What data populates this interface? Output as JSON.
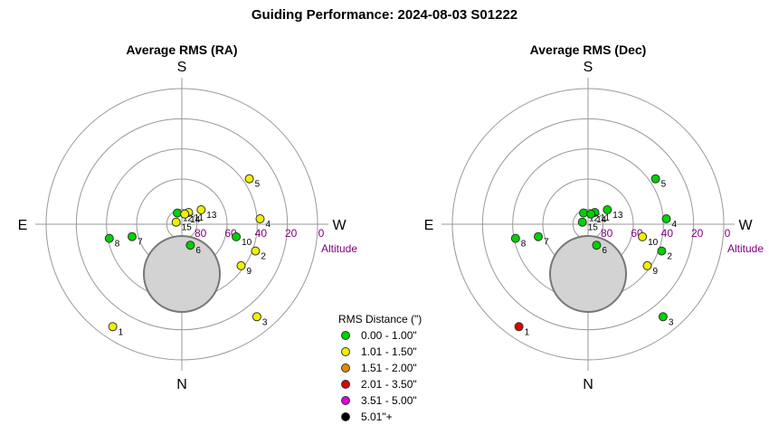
{
  "title": "Guiding Performance: 2024-08-03 S01222",
  "colors": {
    "band_0": "#00d200",
    "band_1": "#f0f000",
    "band_2": "#e08c00",
    "band_3": "#e00000",
    "band_4": "#e000e0",
    "band_5": "#000000",
    "altitude_label": "#800080",
    "rings": "#999999",
    "horizon_blocker": "#d3d3d3"
  },
  "legend": {
    "title": "RMS Distance (\")",
    "items": [
      {
        "label": "0.00 - 1.00\"",
        "color": "#00d200"
      },
      {
        "label": "1.01 - 1.50\"",
        "color": "#f0f000"
      },
      {
        "label": "1.51 - 2.00\"",
        "color": "#e08c00"
      },
      {
        "label": "2.01 - 3.50\"",
        "color": "#e00000"
      },
      {
        "label": "3.51 - 5.00\"",
        "color": "#e000e0"
      },
      {
        "label": "5.01\"+",
        "color": "#000000"
      }
    ]
  },
  "chart_data": [
    {
      "type": "scatter",
      "projection": "polar-sky",
      "title": "Average RMS (RA)",
      "directions": {
        "top": "S",
        "bottom": "N",
        "left": "E",
        "right": "W"
      },
      "altitude_label": "Altitude",
      "altitude_ticks": [
        80,
        60,
        40,
        20,
        0
      ],
      "altitude_range": [
        0,
        90
      ],
      "grid": true,
      "points": [
        {
          "label": "1",
          "azimuth": 34,
          "altitude": 8,
          "band": 1
        },
        {
          "label": "2",
          "azimuth": 290,
          "altitude": 38,
          "band": 1
        },
        {
          "label": "3",
          "azimuth": 321,
          "altitude": 11,
          "band": 1
        },
        {
          "label": "4",
          "azimuth": 266,
          "altitude": 38,
          "band": 1
        },
        {
          "label": "5",
          "azimuth": 236,
          "altitude": 36,
          "band": 1
        },
        {
          "label": "6",
          "azimuth": 338,
          "altitude": 75,
          "band": 0
        },
        {
          "label": "7",
          "azimuth": 76,
          "altitude": 56,
          "band": 0
        },
        {
          "label": "8",
          "azimuth": 79,
          "altitude": 41,
          "band": 0
        },
        {
          "label": "9",
          "azimuth": 305,
          "altitude": 42,
          "band": 1
        },
        {
          "label": "10",
          "azimuth": 283,
          "altitude": 53,
          "band": 0
        },
        {
          "label": "11",
          "azimuth": 210,
          "altitude": 81,
          "band": 1
        },
        {
          "label": "12",
          "azimuth": 158,
          "altitude": 82,
          "band": 0
        },
        {
          "label": "13",
          "azimuth": 233,
          "altitude": 74,
          "band": 1
        },
        {
          "label": "14",
          "azimuth": 196,
          "altitude": 83,
          "band": 1
        },
        {
          "label": "15",
          "azimuth": 110,
          "altitude": 86,
          "band": 1
        }
      ]
    },
    {
      "type": "scatter",
      "projection": "polar-sky",
      "title": "Average RMS (Dec)",
      "directions": {
        "top": "S",
        "bottom": "N",
        "left": "E",
        "right": "W"
      },
      "altitude_label": "Altitude",
      "altitude_ticks": [
        80,
        60,
        40,
        20,
        0
      ],
      "altitude_range": [
        0,
        90
      ],
      "grid": true,
      "points": [
        {
          "label": "1",
          "azimuth": 34,
          "altitude": 8,
          "band": 3
        },
        {
          "label": "2",
          "azimuth": 290,
          "altitude": 38,
          "band": 0
        },
        {
          "label": "3",
          "azimuth": 321,
          "altitude": 11,
          "band": 0
        },
        {
          "label": "4",
          "azimuth": 266,
          "altitude": 38,
          "band": 0
        },
        {
          "label": "5",
          "azimuth": 236,
          "altitude": 36,
          "band": 0
        },
        {
          "label": "6",
          "azimuth": 338,
          "altitude": 75,
          "band": 0
        },
        {
          "label": "7",
          "azimuth": 76,
          "altitude": 56,
          "band": 0
        },
        {
          "label": "8",
          "azimuth": 79,
          "altitude": 41,
          "band": 0
        },
        {
          "label": "9",
          "azimuth": 305,
          "altitude": 42,
          "band": 1
        },
        {
          "label": "10",
          "azimuth": 283,
          "altitude": 53,
          "band": 1
        },
        {
          "label": "11",
          "azimuth": 210,
          "altitude": 81,
          "band": 0
        },
        {
          "label": "12",
          "azimuth": 158,
          "altitude": 82,
          "band": 0
        },
        {
          "label": "13",
          "azimuth": 233,
          "altitude": 74,
          "band": 0
        },
        {
          "label": "14",
          "azimuth": 196,
          "altitude": 83,
          "band": 0
        },
        {
          "label": "15",
          "azimuth": 110,
          "altitude": 86,
          "band": 0
        }
      ]
    }
  ]
}
